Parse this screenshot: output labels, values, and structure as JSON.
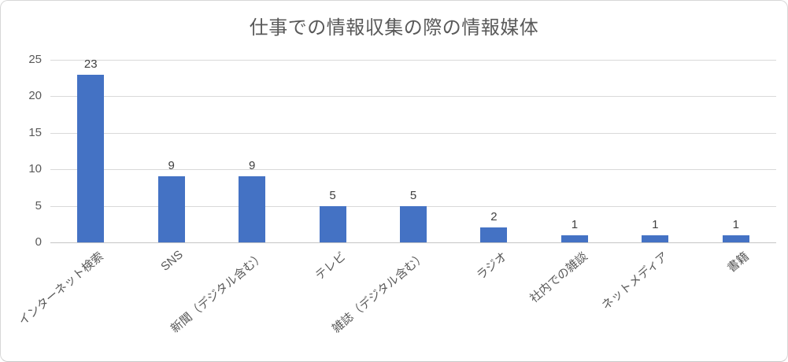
{
  "chart_data": {
    "type": "bar",
    "title": "仕事での情報収集の際の情報媒体",
    "categories": [
      "インターネット検索",
      "SNS",
      "新聞（デジタル含む）",
      "テレビ",
      "雑誌（デジタル含む）",
      "ラジオ",
      "社内での雑談",
      "ネットメディア",
      "書籍"
    ],
    "values": [
      23,
      9,
      9,
      5,
      5,
      2,
      1,
      1,
      1
    ],
    "data_labels": [
      "23",
      "9",
      "9",
      "5",
      "5",
      "2",
      "1",
      "1",
      "1"
    ],
    "xlabel": "",
    "ylabel": "",
    "ylim": [
      0,
      25
    ],
    "yticks": [
      0,
      5,
      10,
      15,
      20,
      25
    ],
    "grid": true,
    "legend": false,
    "x_label_rotation_deg": -40,
    "colors": {
      "bar": "#4472c4",
      "title_text": "#595959",
      "axis_text": "#595959",
      "data_label_text": "#404040",
      "gridline": "#d9d9d9",
      "axis_line": "#c6c6c6",
      "frame_border": "#d7d7d7",
      "background": "#ffffff"
    }
  }
}
